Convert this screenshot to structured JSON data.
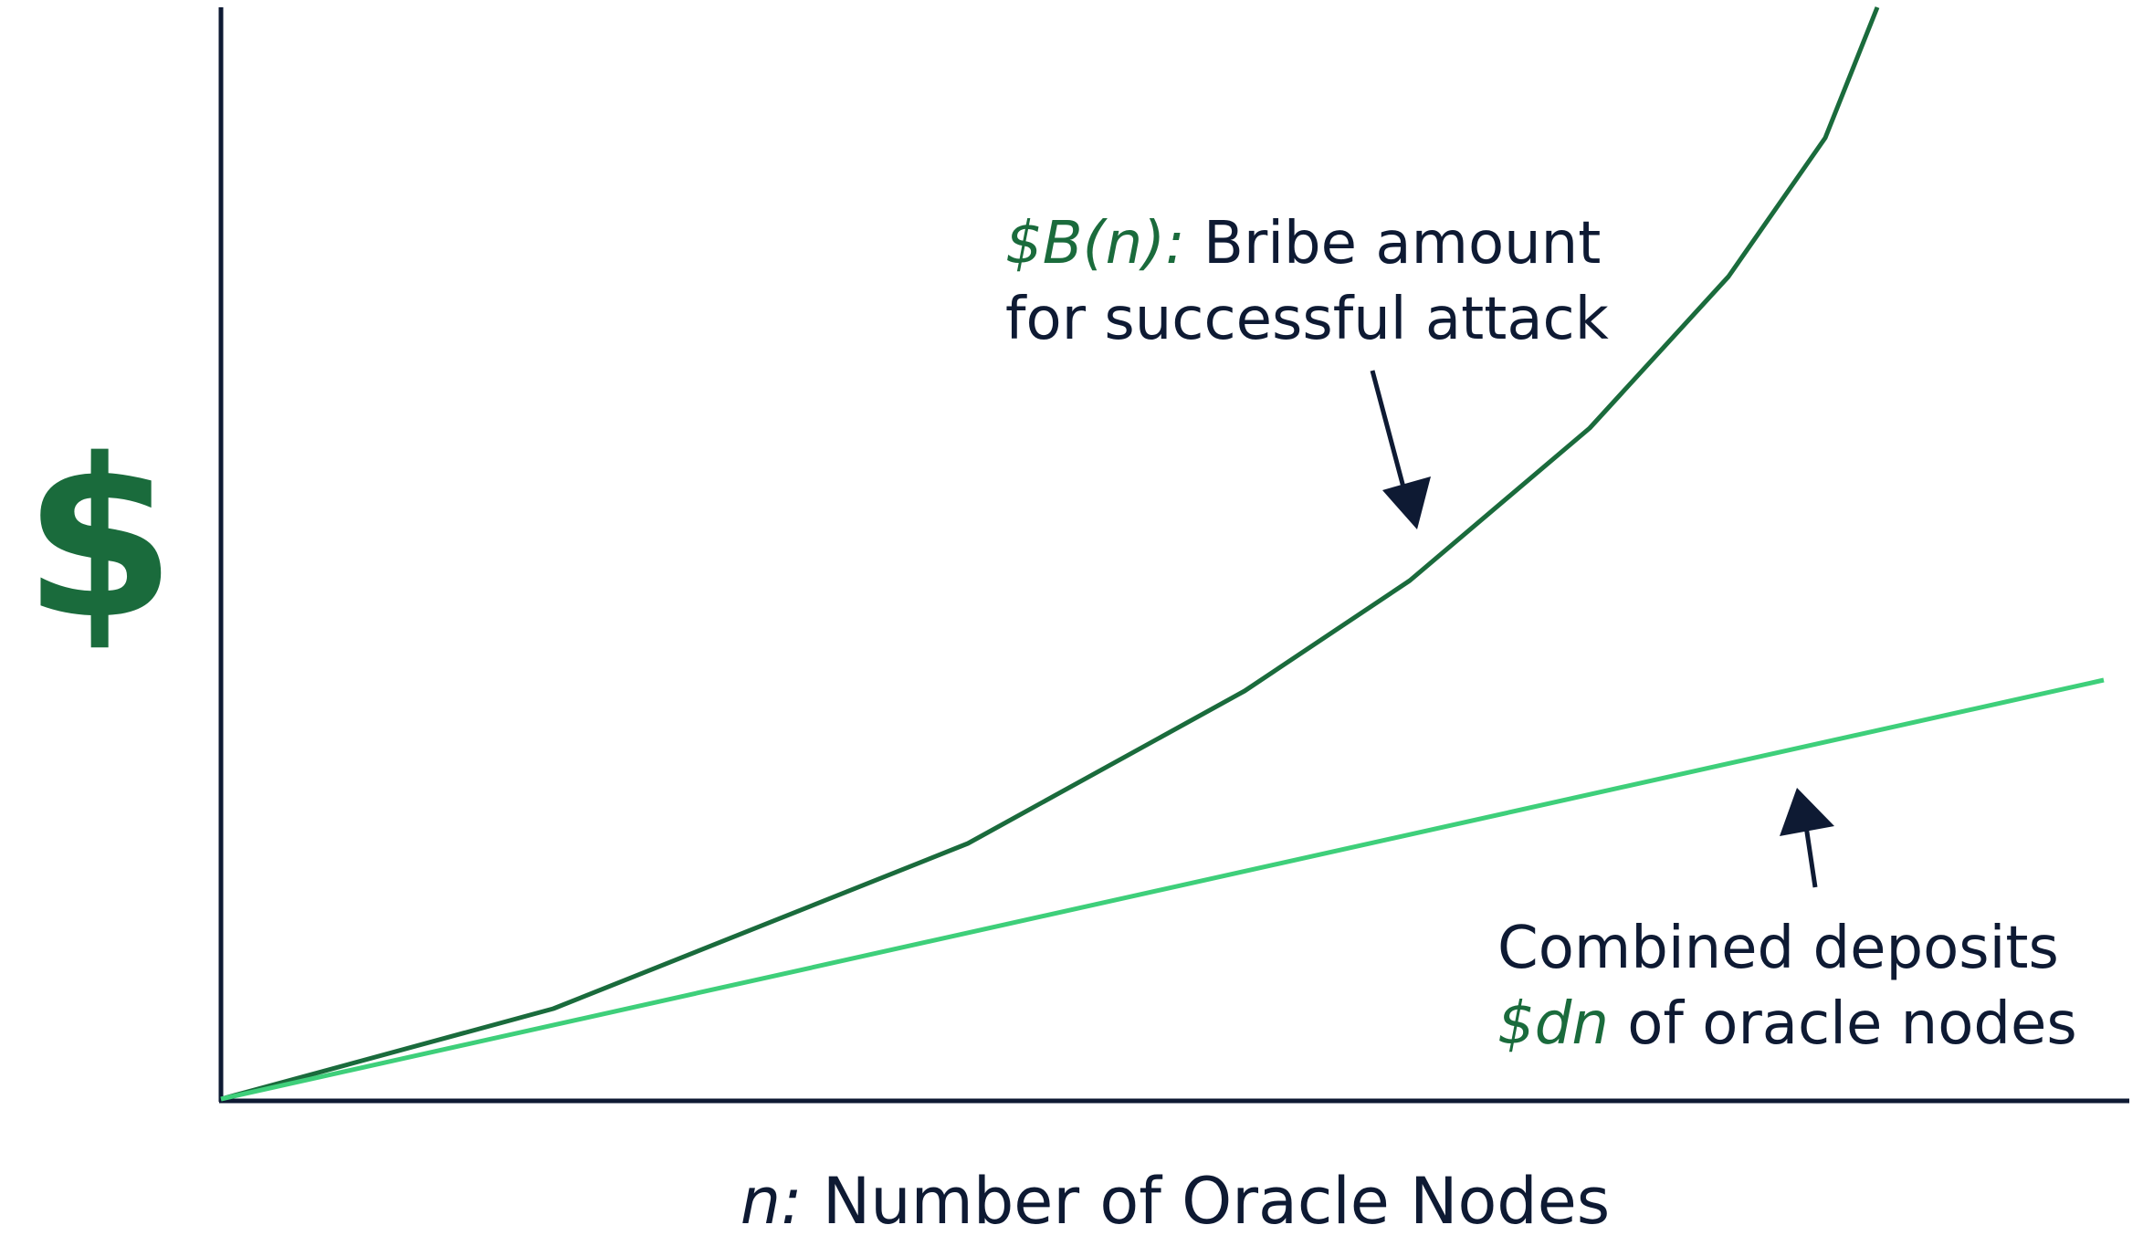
{
  "y_axis_label": "$",
  "x_axis_label": {
    "variable": "n:",
    "text": "Number of Oracle Nodes"
  },
  "annotations": [
    {
      "symbol": "$B(n):",
      "line1": "Bribe amount",
      "line2": "for successful attack"
    },
    {
      "line1": "Combined deposits",
      "symbol": "$dn",
      "line2": "of oracle nodes"
    }
  ]
}
